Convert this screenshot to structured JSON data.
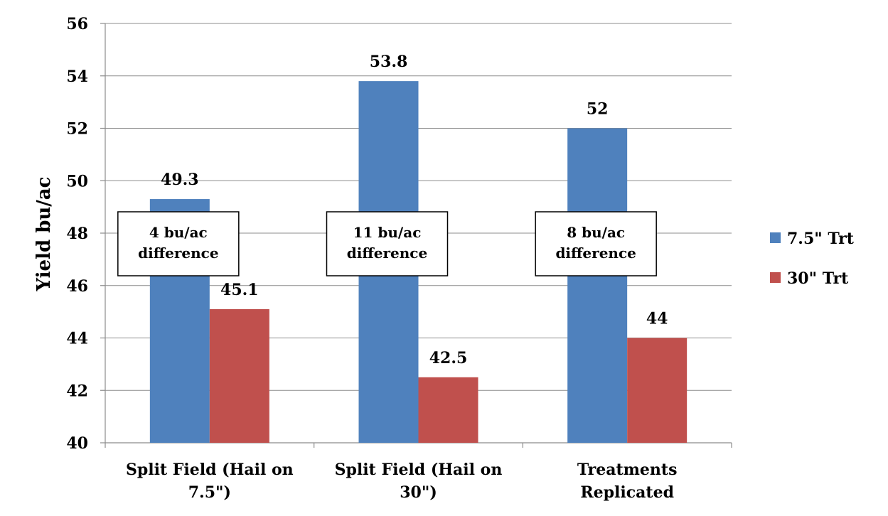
{
  "chart_data": {
    "type": "bar",
    "title": "",
    "xlabel": "",
    "ylabel": "Yield bu/ac",
    "ylim": [
      40,
      56
    ],
    "ytick_step": 2,
    "grid": true,
    "legend_position": "right",
    "categories": [
      [
        "Split Field (Hail on",
        "7.5\")"
      ],
      [
        "Split Field (Hail on",
        "30\")"
      ],
      [
        "Treatments",
        "Replicated"
      ]
    ],
    "series": [
      {
        "name": "7.5\" Trt",
        "color": "#4f81bd",
        "values": [
          49.3,
          53.8,
          52
        ]
      },
      {
        "name": "30\" Trt",
        "color": "#c0504d",
        "values": [
          45.1,
          42.5,
          44
        ]
      }
    ],
    "data_labels": [
      [
        "49.3",
        "53.8",
        "52"
      ],
      [
        "45.1",
        "42.5",
        "44"
      ]
    ],
    "annotations": [
      [
        "4 bu/ac",
        "difference"
      ],
      [
        "11 bu/ac",
        "difference"
      ],
      [
        "8 bu/ac",
        "difference"
      ]
    ]
  }
}
